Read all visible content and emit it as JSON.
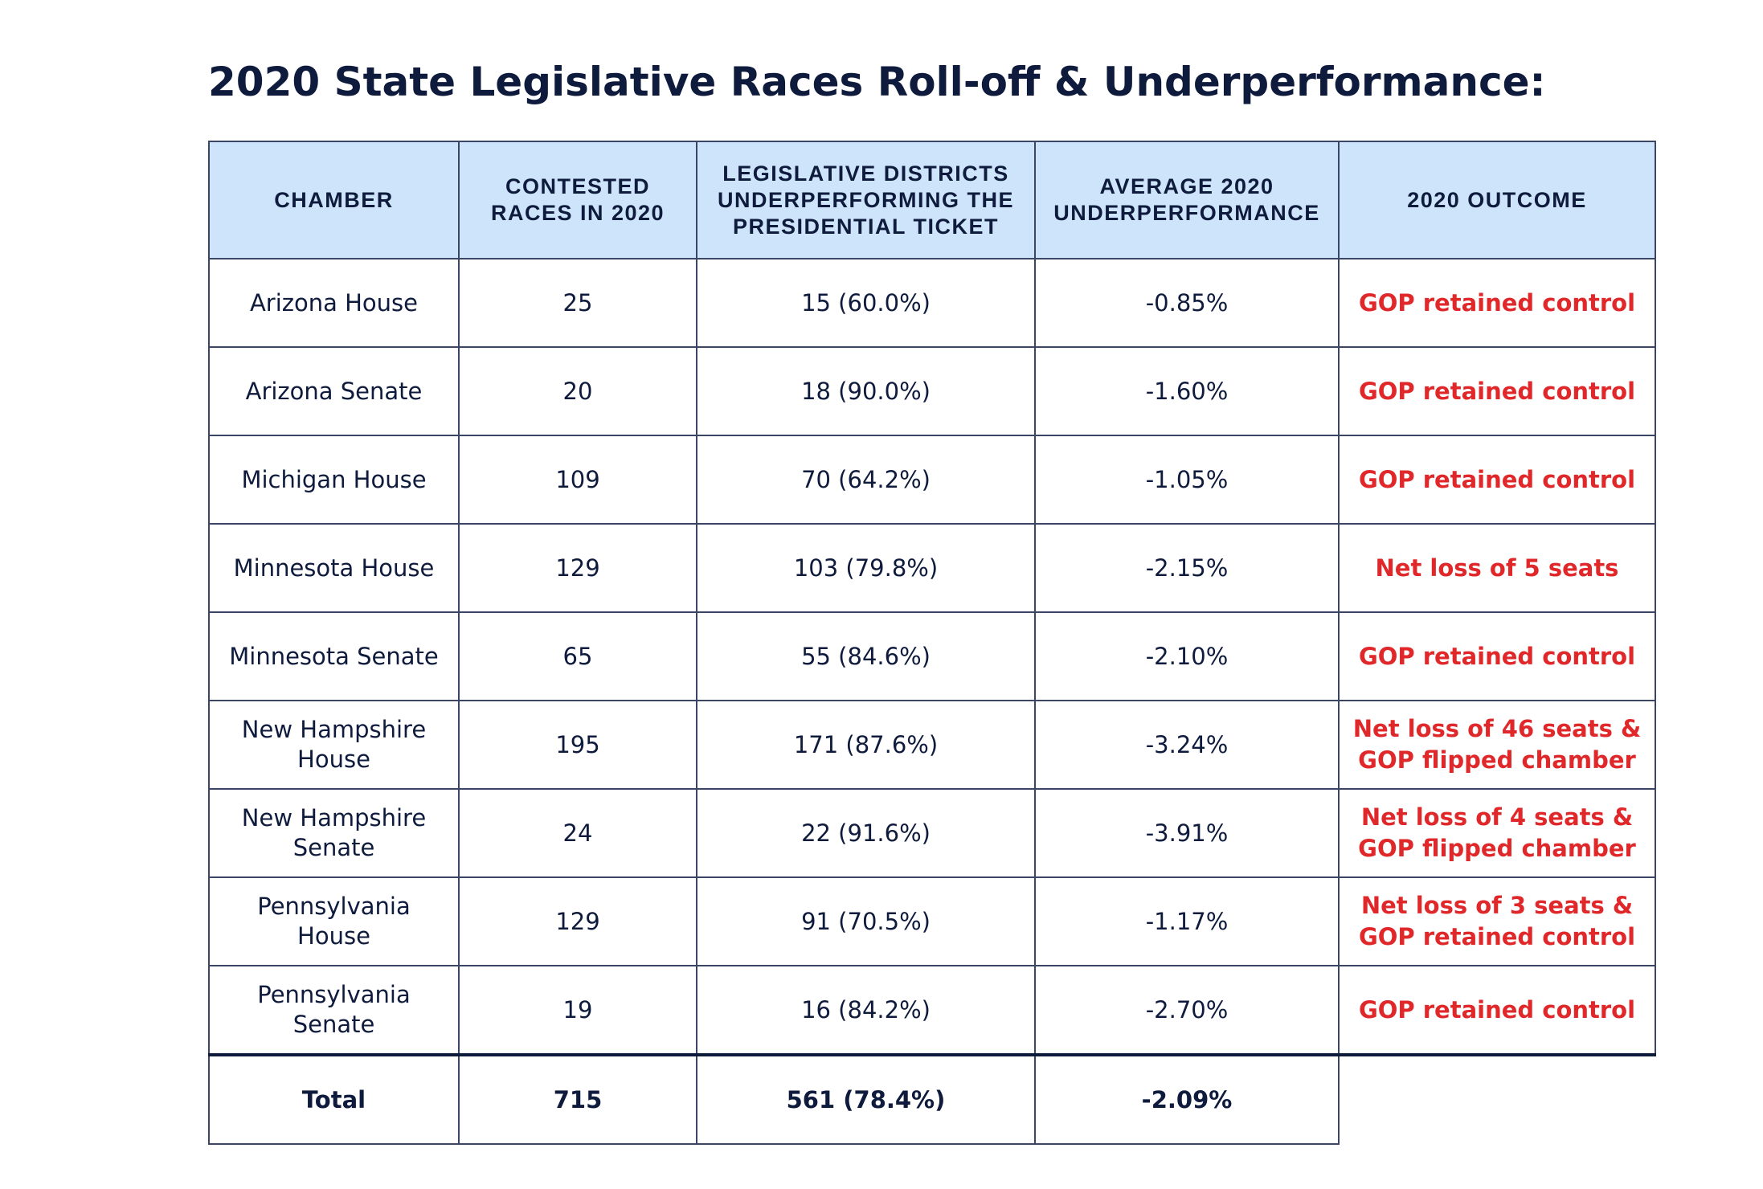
{
  "title": "2020 State Legislative Races Roll-off & Underperformance:",
  "table": {
    "headers": [
      "CHAMBER",
      "CONTESTED RACES IN 2020",
      "LEGISLATIVE DISTRICTS UNDERPERFORMING THE PRESIDENTIAL TICKET",
      "AVERAGE 2020 UNDERPERFORMANCE",
      "2020 OUTCOME"
    ],
    "rows": [
      {
        "chamber": [
          "Arizona House"
        ],
        "contested": "25",
        "districts": "15 (60.0%)",
        "avg": "-0.85%",
        "outcome": [
          "GOP retained control"
        ]
      },
      {
        "chamber": [
          "Arizona Senate"
        ],
        "contested": "20",
        "districts": "18 (90.0%)",
        "avg": "-1.60%",
        "outcome": [
          "GOP retained control"
        ]
      },
      {
        "chamber": [
          "Michigan House"
        ],
        "contested": "109",
        "districts": "70 (64.2%)",
        "avg": "-1.05%",
        "outcome": [
          "GOP retained control"
        ]
      },
      {
        "chamber": [
          "Minnesota House"
        ],
        "contested": "129",
        "districts": "103 (79.8%)",
        "avg": "-2.15%",
        "outcome": [
          "Net loss of 5 seats"
        ]
      },
      {
        "chamber": [
          "Minnesota Senate"
        ],
        "contested": "65",
        "districts": "55 (84.6%)",
        "avg": "-2.10%",
        "outcome": [
          "GOP retained control"
        ]
      },
      {
        "chamber": [
          "New Hampshire",
          "House"
        ],
        "contested": "195",
        "districts": "171 (87.6%)",
        "avg": "-3.24%",
        "outcome": [
          "Net loss of 46 seats &",
          "GOP flipped chamber"
        ]
      },
      {
        "chamber": [
          "New Hampshire",
          "Senate"
        ],
        "contested": "24",
        "districts": "22 (91.6%)",
        "avg": "-3.91%",
        "outcome": [
          "Net loss of 4 seats &",
          "GOP flipped chamber"
        ]
      },
      {
        "chamber": [
          "Pennsylvania",
          "House"
        ],
        "contested": "129",
        "districts": "91 (70.5%)",
        "avg": "-1.17%",
        "outcome": [
          "Net loss of 3 seats &",
          "GOP retained control"
        ]
      },
      {
        "chamber": [
          "Pennsylvania",
          "Senate"
        ],
        "contested": "19",
        "districts": "16 (84.2%)",
        "avg": "-2.70%",
        "outcome": [
          "GOP retained control"
        ]
      }
    ],
    "total": {
      "label": "Total",
      "contested": "715",
      "districts": "561 (78.4%)",
      "avg": "-2.09%"
    }
  },
  "colors": {
    "header_bg": "#cde4fa",
    "text": "#0f1b3d",
    "outcome": "#e0282a",
    "border": "#3b4666"
  }
}
